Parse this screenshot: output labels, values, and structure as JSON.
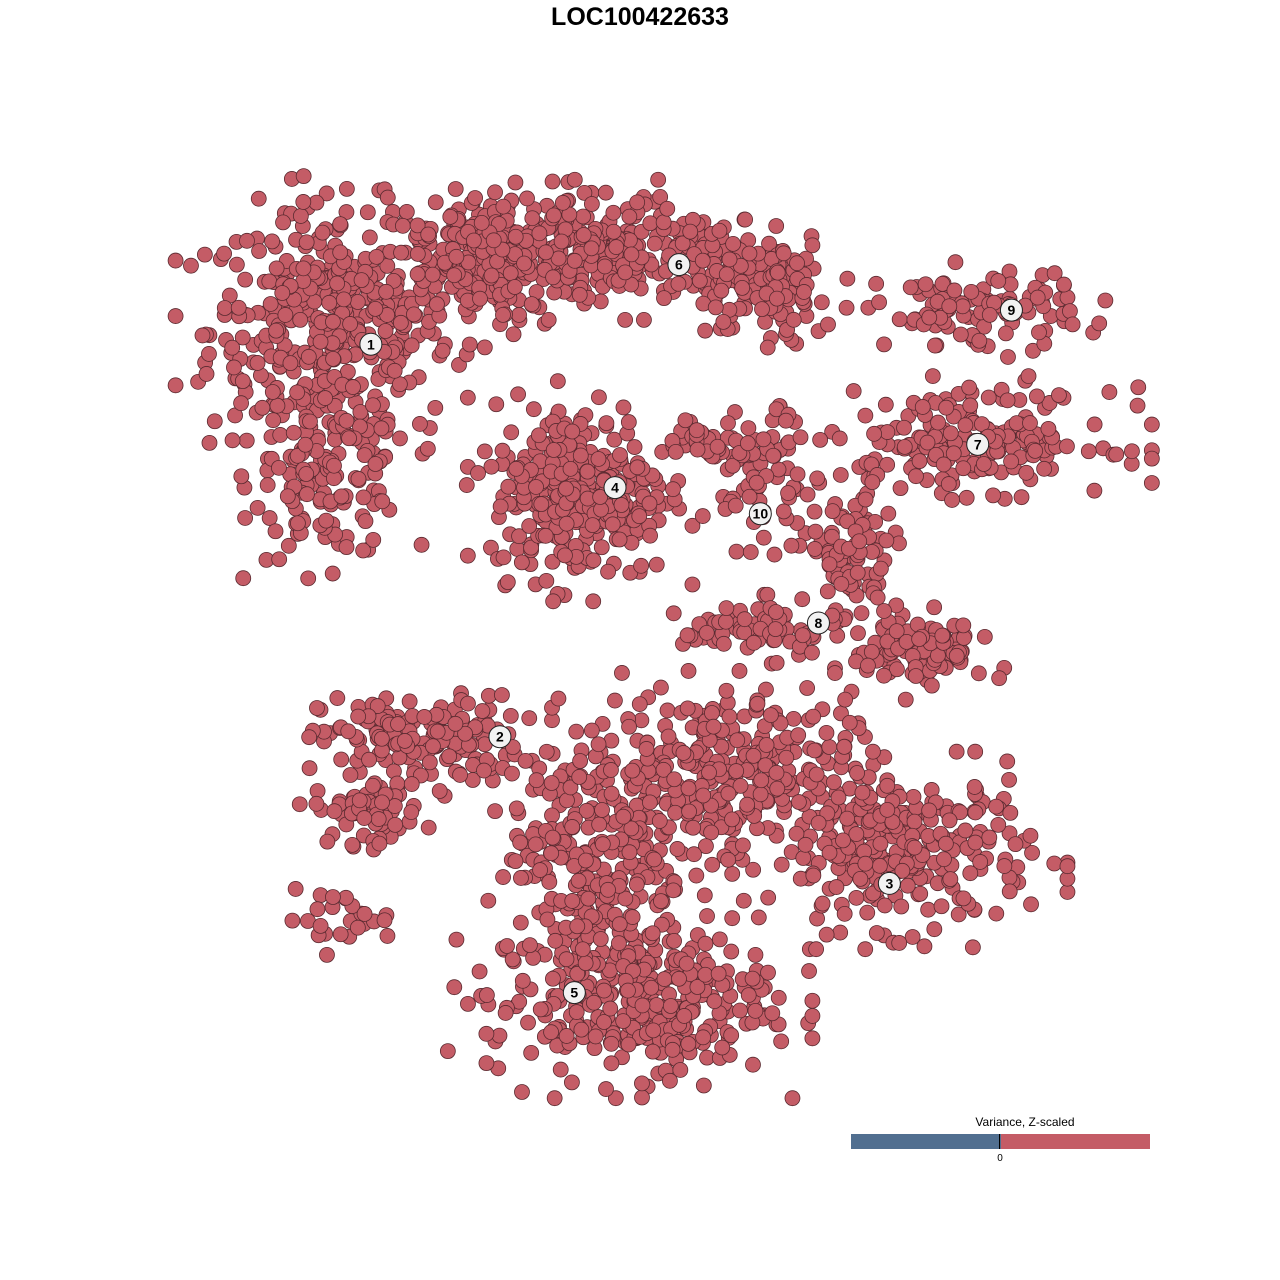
{
  "chart_data": {
    "type": "scatter",
    "title": "LOC100422633",
    "xlabel": "",
    "ylabel": "",
    "xlim": [
      -40,
      40
    ],
    "ylim": [
      -40,
      40
    ],
    "grid": false,
    "axes_visible": false,
    "point_color": "#c45c66",
    "point_stroke": "#5a2a30",
    "clusters": [
      {
        "label": "1",
        "label_pos": [
          -25.3,
          26.0
        ],
        "blobs": [
          {
            "center": [
              -28.8,
              27.2
            ],
            "spread": [
              9.5,
              9.7
            ],
            "n": 420
          },
          {
            "center": [
              -28.8,
              14.1
            ],
            "spread": [
              6.0,
              6.2
            ],
            "n": 130
          },
          {
            "center": [
              -15.9,
              33.4
            ],
            "spread": [
              8.6,
              5.3
            ],
            "n": 220
          }
        ]
      },
      {
        "label": "2",
        "label_pos": [
          -14.2,
          -8.5
        ],
        "blobs": [
          {
            "center": [
              -21.1,
              -8.8
            ],
            "spread": [
              7.7,
              3.5
            ],
            "n": 160
          },
          {
            "center": [
              -25.4,
              -15.0
            ],
            "spread": [
              4.3,
              2.6
            ],
            "n": 70
          },
          {
            "center": [
              -28.0,
              -24.6
            ],
            "spread": [
              4.3,
              2.2
            ],
            "n": 25
          }
        ]
      },
      {
        "label": "3",
        "label_pos": [
          19.3,
          -21.4
        ],
        "blobs": [
          {
            "center": [
              20.2,
              -18.5
            ],
            "spread": [
              10.3,
              6.2
            ],
            "n": 300
          },
          {
            "center": [
              4.7,
              -11.4
            ],
            "spread": [
              10.3,
              6.2
            ],
            "n": 300
          }
        ]
      },
      {
        "label": "4",
        "label_pos": [
          -4.3,
          13.4
        ],
        "blobs": [
          {
            "center": [
              -7.3,
              13.2
            ],
            "spread": [
              6.9,
              7.0
            ],
            "n": 320
          }
        ]
      },
      {
        "label": "5",
        "label_pos": [
          -7.8,
          -31.0
        ],
        "blobs": [
          {
            "center": [
              -3.0,
              -31.6
            ],
            "spread": [
              11.2,
              6.2
            ],
            "n": 350
          },
          {
            "center": [
              -5.6,
              -18.5
            ],
            "spread": [
              6.9,
              8.8
            ],
            "n": 260
          }
        ]
      },
      {
        "label": "6",
        "label_pos": [
          1.2,
          33.0
        ],
        "blobs": [
          {
            "center": [
              -5.6,
              34.3
            ],
            "spread": [
              11.2,
              4.4
            ],
            "n": 300
          },
          {
            "center": [
              8.2,
              30.8
            ],
            "spread": [
              6.0,
              4.4
            ],
            "n": 130
          }
        ]
      },
      {
        "label": "7",
        "label_pos": [
          26.9,
          17.2
        ],
        "blobs": [
          {
            "center": [
              26.2,
              17.6
            ],
            "spread": [
              11.2,
              4.0
            ],
            "n": 200
          }
        ]
      },
      {
        "label": "8",
        "label_pos": [
          13.2,
          1.5
        ],
        "blobs": [
          {
            "center": [
              15.9,
              7.0
            ],
            "spread": [
              3.4,
              5.3
            ],
            "n": 90
          },
          {
            "center": [
              21.9,
              -0.9
            ],
            "spread": [
              5.2,
              3.1
            ],
            "n": 110
          },
          {
            "center": [
              8.2,
              0.9
            ],
            "spread": [
              6.0,
              2.2
            ],
            "n": 70
          }
        ]
      },
      {
        "label": "9",
        "label_pos": [
          29.8,
          29.0
        ],
        "blobs": [
          {
            "center": [
              27.1,
              29.0
            ],
            "spread": [
              7.7,
              3.1
            ],
            "n": 110
          }
        ]
      },
      {
        "label": "10",
        "label_pos": [
          8.2,
          11.1
        ],
        "blobs": [
          {
            "center": [
              8.2,
              14.1
            ],
            "spread": [
              4.3,
              5.3
            ],
            "n": 70
          },
          {
            "center": [
              3.9,
              17.6
            ],
            "spread": [
              4.3,
              1.8
            ],
            "n": 35
          }
        ]
      }
    ],
    "legend": {
      "title": "Variance, Z-scaled",
      "tick_label": "0",
      "low_color": "#516f90",
      "high_color": "#c45c66",
      "placement": "bottom-right"
    }
  }
}
